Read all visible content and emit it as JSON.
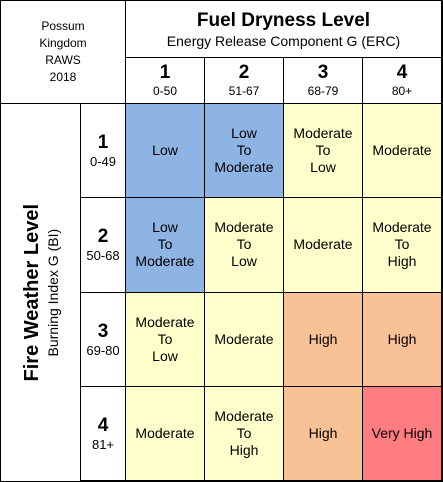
{
  "corner": {
    "lines": [
      "Possum",
      "Kingdom",
      "RAWS",
      "2018"
    ]
  },
  "column_header": {
    "title": "Fuel Dryness Level",
    "subtitle": "Energy Release Component G (ERC)"
  },
  "columns": [
    {
      "level": "1",
      "range": "0-50"
    },
    {
      "level": "2",
      "range": "51-67"
    },
    {
      "level": "3",
      "range": "68-79"
    },
    {
      "level": "4",
      "range": "80+"
    }
  ],
  "row_header": {
    "title": "Fire Weather Level",
    "subtitle": "Burning Index G (BI)"
  },
  "rows": [
    {
      "level": "1",
      "range": "0-49",
      "cells": [
        {
          "lines": [
            "Low"
          ],
          "color": "#8eb4e3"
        },
        {
          "lines": [
            "Low",
            "To",
            "Moderate"
          ],
          "color": "#8eb4e3"
        },
        {
          "lines": [
            "Moderate",
            "To",
            "Low"
          ],
          "color": "#ffffcc"
        },
        {
          "lines": [
            "Moderate"
          ],
          "color": "#ffffcc"
        }
      ]
    },
    {
      "level": "2",
      "range": "50-68",
      "cells": [
        {
          "lines": [
            "Low",
            "To",
            "Moderate"
          ],
          "color": "#8eb4e3"
        },
        {
          "lines": [
            "Moderate",
            "To",
            "Low"
          ],
          "color": "#ffffcc"
        },
        {
          "lines": [
            "Moderate"
          ],
          "color": "#ffffcc"
        },
        {
          "lines": [
            "Moderate",
            "To",
            "High"
          ],
          "color": "#ffffcc"
        }
      ]
    },
    {
      "level": "3",
      "range": "69-80",
      "cells": [
        {
          "lines": [
            "Moderate",
            "To",
            "Low"
          ],
          "color": "#ffffcc"
        },
        {
          "lines": [
            "Moderate"
          ],
          "color": "#ffffcc"
        },
        {
          "lines": [
            "High"
          ],
          "color": "#f8c196"
        },
        {
          "lines": [
            "High"
          ],
          "color": "#f8c196"
        }
      ]
    },
    {
      "level": "4",
      "range": "81+",
      "cells": [
        {
          "lines": [
            "Moderate"
          ],
          "color": "#ffffcc"
        },
        {
          "lines": [
            "Moderate",
            "To",
            "High"
          ],
          "color": "#ffffcc"
        },
        {
          "lines": [
            "High"
          ],
          "color": "#f8c196"
        },
        {
          "lines": [
            "Very High"
          ],
          "color": "#ff7c80"
        }
      ]
    }
  ]
}
